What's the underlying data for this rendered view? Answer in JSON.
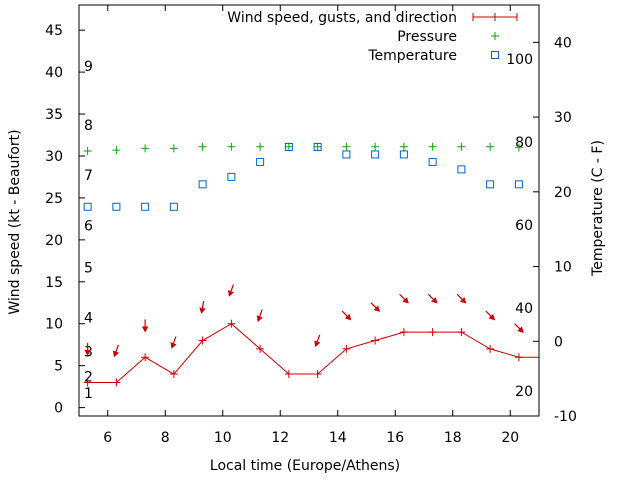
{
  "chart_data": {
    "type": "line",
    "title": "",
    "xlabel": "Local time (Europe/Athens)",
    "ylabel": "Wind speed (kt - Beaufort)",
    "y2label": "Temperature (C - F)",
    "xlim": [
      5,
      21
    ],
    "ylim": [
      -1,
      48
    ],
    "y2lim": [
      -10,
      45
    ],
    "x_ticks": [
      "6",
      "8",
      "10",
      "12",
      "14",
      "16",
      "18",
      "20"
    ],
    "y_ticks": [
      "0",
      "5",
      "10",
      "15",
      "20",
      "25",
      "30",
      "35",
      "40",
      "45"
    ],
    "y2_ticks": [
      "-10",
      "0",
      "10",
      "20",
      "30",
      "40"
    ],
    "beaufort_labels": [
      "1",
      "2",
      "3",
      "4",
      "5",
      "6",
      "7",
      "8",
      "9"
    ],
    "fahrenheit_labels": [
      "20",
      "40",
      "60",
      "80",
      "100"
    ],
    "legend": {
      "wind": "Wind speed, gusts, and direction",
      "pressure": "Pressure",
      "temperature": "Temperature"
    },
    "series": [
      {
        "name": "Wind speed, gusts, and direction",
        "color": "#cc0000",
        "x": [
          5.3,
          6.3,
          7.3,
          8.3,
          9.3,
          10.3,
          11.3,
          12.3,
          13.3,
          14.3,
          15.3,
          16.3,
          17.3,
          18.3,
          19.3,
          20.3,
          21
        ],
        "values": [
          3,
          3,
          6,
          4,
          8,
          10,
          7,
          4,
          4,
          7,
          8,
          9,
          9,
          9,
          7,
          6,
          6
        ]
      },
      {
        "name": "Pressure",
        "color": "#00aa00",
        "x": [
          5.3,
          6.3,
          7.3,
          8.3,
          9.3,
          10.3,
          11.3,
          12.3,
          13.3,
          14.3,
          15.3,
          16.3,
          17.3,
          18.3,
          19.3,
          20.3
        ],
        "values": [
          30.6,
          30.7,
          30.9,
          30.9,
          31.1,
          31.1,
          31.1,
          31.1,
          31.1,
          31.1,
          31.1,
          31.1,
          31.1,
          31.1,
          31.1,
          31.0
        ]
      },
      {
        "name": "Temperature",
        "color": "#0066cc",
        "x": [
          5.3,
          6.3,
          7.3,
          8.3,
          9.3,
          10.3,
          11.3,
          12.3,
          13.3,
          14.3,
          15.3,
          16.3,
          17.3,
          18.3,
          19.3,
          20.3
        ],
        "values": [
          18,
          18,
          18,
          18,
          21,
          22,
          24,
          26,
          26,
          25,
          25,
          25,
          24,
          23,
          21,
          21
        ]
      }
    ],
    "wind_arrows": [
      {
        "x": 5.3,
        "y": 7.0,
        "dir_deg": 180
      },
      {
        "x": 6.3,
        "y": 6.8,
        "dir_deg": 200
      },
      {
        "x": 7.3,
        "y": 9.8,
        "dir_deg": 180
      },
      {
        "x": 8.3,
        "y": 7.8,
        "dir_deg": 200
      },
      {
        "x": 9.3,
        "y": 12.0,
        "dir_deg": 190
      },
      {
        "x": 10.3,
        "y": 14.0,
        "dir_deg": 200
      },
      {
        "x": 11.3,
        "y": 11.0,
        "dir_deg": 200
      },
      {
        "x": 13.3,
        "y": 8.0,
        "dir_deg": 200
      },
      {
        "x": 14.3,
        "y": 11.0,
        "dir_deg": 135
      },
      {
        "x": 15.3,
        "y": 12.0,
        "dir_deg": 135
      },
      {
        "x": 16.3,
        "y": 13.0,
        "dir_deg": 135
      },
      {
        "x": 17.3,
        "y": 13.0,
        "dir_deg": 135
      },
      {
        "x": 18.3,
        "y": 13.0,
        "dir_deg": 135
      },
      {
        "x": 19.3,
        "y": 11.0,
        "dir_deg": 135
      },
      {
        "x": 20.3,
        "y": 9.5,
        "dir_deg": 135
      }
    ]
  }
}
